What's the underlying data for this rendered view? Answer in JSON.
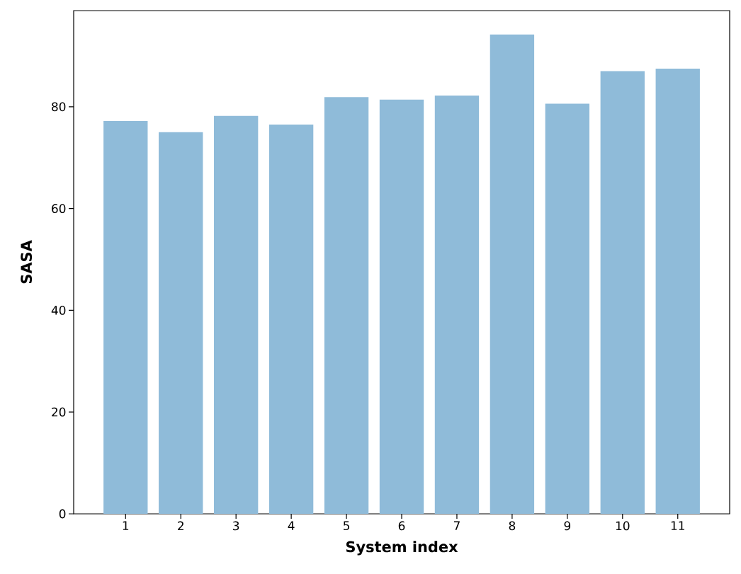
{
  "chart_data": {
    "type": "bar",
    "xlabel": "System index",
    "ylabel": "SASA",
    "categories": [
      "1",
      "2",
      "3",
      "4",
      "5",
      "6",
      "7",
      "8",
      "9",
      "10",
      "11"
    ],
    "values": [
      77.2,
      75.0,
      78.2,
      76.5,
      81.9,
      81.4,
      82.2,
      94.2,
      80.6,
      87.0,
      87.5
    ],
    "color": "#8fbbd9",
    "ylim": [
      0,
      98.9
    ],
    "yticks": [
      0,
      20,
      40,
      60,
      80
    ],
    "grid": false
  }
}
